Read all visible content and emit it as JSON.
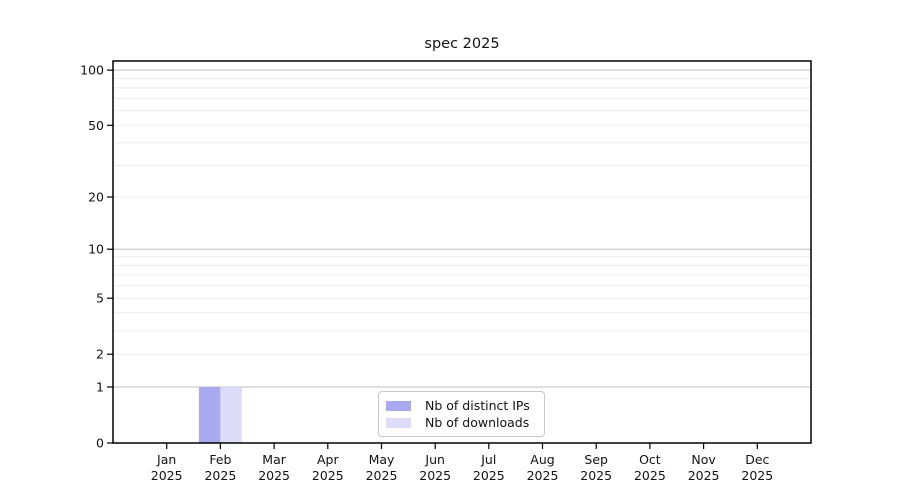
{
  "chart_data": {
    "type": "bar",
    "title": "spec 2025",
    "categories": [
      "Jan",
      "Feb",
      "Mar",
      "Apr",
      "May",
      "Jun",
      "Jul",
      "Aug",
      "Sep",
      "Oct",
      "Nov",
      "Dec"
    ],
    "year": "2025",
    "series": [
      {
        "name": "Nb of distinct IPs",
        "color": "#a9a9f0",
        "values": [
          0,
          1,
          0,
          0,
          0,
          0,
          0,
          0,
          0,
          0,
          0,
          0
        ]
      },
      {
        "name": "Nb of downloads",
        "color": "#dcdcf8",
        "values": [
          0,
          1,
          0,
          0,
          0,
          0,
          0,
          0,
          0,
          0,
          0,
          0
        ]
      }
    ],
    "yscale": "log1p",
    "ylim": [
      0,
      112
    ],
    "yticks": [
      0,
      1,
      2,
      5,
      10,
      20,
      50,
      100
    ],
    "grid": {
      "major": [
        1,
        10,
        100
      ],
      "minor": [
        2,
        3,
        4,
        5,
        6,
        7,
        8,
        9,
        20,
        30,
        40,
        50,
        60,
        70,
        80,
        90
      ],
      "major_color": "#bdbdbd",
      "minor_color": "#ececec"
    },
    "legend": {
      "position": "lower center"
    }
  }
}
